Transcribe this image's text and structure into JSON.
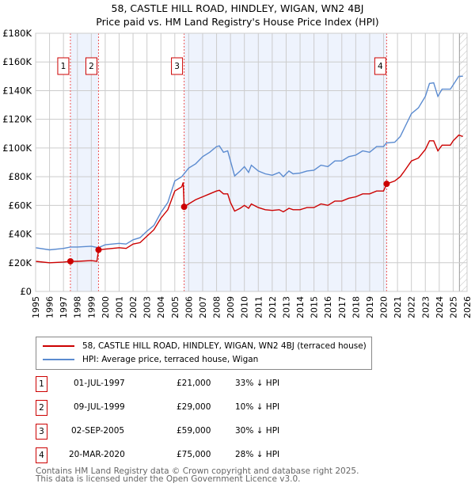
{
  "chart_data": {
    "type": "line",
    "title": "58, CASTLE HILL ROAD, HINDLEY, WIGAN, WN2 4BJ",
    "subtitle": "Price paid vs. HM Land Registry's House Price Index (HPI)",
    "xlim": [
      1995,
      2026
    ],
    "ylim": [
      0,
      180000
    ],
    "x_ticks": [
      "1995",
      "1996",
      "1997",
      "1998",
      "1999",
      "2000",
      "2001",
      "2002",
      "2003",
      "2004",
      "2005",
      "2006",
      "2007",
      "2008",
      "2009",
      "2010",
      "2011",
      "2012",
      "2013",
      "2014",
      "2015",
      "2016",
      "2017",
      "2018",
      "2019",
      "2020",
      "2021",
      "2022",
      "2023",
      "2024",
      "2025",
      "2026"
    ],
    "y_ticks": [
      {
        "v": 0,
        "label": "£0"
      },
      {
        "v": 20000,
        "label": "£20K"
      },
      {
        "v": 40000,
        "label": "£40K"
      },
      {
        "v": 60000,
        "label": "£60K"
      },
      {
        "v": 80000,
        "label": "£80K"
      },
      {
        "v": 100000,
        "label": "£100K"
      },
      {
        "v": 120000,
        "label": "£120K"
      },
      {
        "v": 140000,
        "label": "£140K"
      },
      {
        "v": 160000,
        "label": "£160K"
      },
      {
        "v": 180000,
        "label": "£180K"
      }
    ],
    "grid": true,
    "forecast_start": 2025.45,
    "series": [
      {
        "name": "58, CASTLE HILL ROAD, HINDLEY, WIGAN, WN2 4BJ (terraced house)",
        "color": "#cc0000",
        "x": [
          1995,
          1996,
          1997,
          1997.5,
          1998,
          1999,
          1999.4,
          1999.52,
          2000,
          2001,
          2001.5,
          2002,
          2002.5,
          2003,
          2003.5,
          2004,
          2004.5,
          2005,
          2005.5,
          2005.6,
          2005.67,
          2006,
          2006.5,
          2007,
          2007.5,
          2008,
          2008.2,
          2008.5,
          2008.8,
          2009,
          2009.3,
          2009.7,
          2010,
          2010.3,
          2010.5,
          2011,
          2011.5,
          2012,
          2012.5,
          2012.8,
          2013.2,
          2013.5,
          2014,
          2014.5,
          2015,
          2015.5,
          2016,
          2016.5,
          2017,
          2017.5,
          2018,
          2018.5,
          2019,
          2019.5,
          2020,
          2020.22,
          2020.8,
          2021.2,
          2021.5,
          2022,
          2022.5,
          2023,
          2023.3,
          2023.6,
          2023.9,
          2024.2,
          2024.8,
          2025,
          2025.4,
          2025.7
        ],
        "y": [
          21,
          20,
          20.5,
          21,
          21,
          21.5,
          21,
          29,
          29.5,
          30.5,
          30,
          33,
          34,
          38.5,
          43,
          51,
          57,
          70,
          73,
          76,
          59,
          61,
          64,
          66,
          68,
          70,
          70.5,
          68,
          68,
          62,
          56,
          58,
          60,
          58,
          61,
          58.5,
          57,
          56.5,
          57,
          55.5,
          58,
          57,
          57,
          58.5,
          58.5,
          61,
          60,
          63,
          63,
          65,
          66,
          68,
          68,
          70,
          70,
          75,
          77,
          80,
          84,
          91,
          93,
          99,
          105,
          105,
          98,
          102,
          102,
          105,
          109,
          108
        ]
      },
      {
        "name": "HPI: Average price, terraced house, Wigan",
        "color": "#5b8bd0",
        "x": [
          1995,
          1996,
          1997,
          1997.5,
          1998,
          1999,
          1999.5,
          2000,
          2001,
          2001.5,
          2002,
          2002.5,
          2003,
          2003.5,
          2004,
          2004.5,
          2005,
          2005.5,
          2006,
          2006.5,
          2007,
          2007.5,
          2008,
          2008.2,
          2008.5,
          2008.8,
          2009,
          2009.3,
          2009.7,
          2010,
          2010.3,
          2010.5,
          2011,
          2011.5,
          2012,
          2012.5,
          2012.8,
          2013.2,
          2013.5,
          2014,
          2014.5,
          2015,
          2015.5,
          2016,
          2016.5,
          2017,
          2017.5,
          2018,
          2018.5,
          2019,
          2019.5,
          2020,
          2020.2,
          2020.8,
          2021.2,
          2021.5,
          2022,
          2022.5,
          2023,
          2023.3,
          2023.6,
          2023.9,
          2024.2,
          2024.8,
          2025,
          2025.4,
          2025.7
        ],
        "y": [
          30.5,
          29,
          30,
          31,
          31,
          31.5,
          30.5,
          32.5,
          33.5,
          33,
          36,
          37.5,
          42,
          46,
          55,
          62,
          77,
          80,
          86,
          89,
          94,
          97,
          101,
          101.5,
          97,
          98,
          91,
          80.5,
          84,
          87,
          83,
          88,
          84,
          82,
          81,
          83,
          80,
          84,
          82,
          82.5,
          84,
          84.5,
          88,
          87,
          91,
          91,
          94,
          95,
          98,
          97,
          101,
          101,
          103.5,
          104,
          108,
          114,
          124,
          128,
          136,
          145,
          145.5,
          136,
          141,
          141,
          144,
          150,
          150
        ]
      }
    ],
    "y_unit": "thousands GBP",
    "sales": [
      {
        "n": "1",
        "x": 1997.5,
        "y": 21,
        "date": "01-JUL-1997",
        "price": "£21,000",
        "hpi": "33% ↓ HPI"
      },
      {
        "n": "2",
        "x": 1999.52,
        "y": 29,
        "date": "09-JUL-1999",
        "price": "£29,000",
        "hpi": "10% ↓ HPI"
      },
      {
        "n": "3",
        "x": 2005.67,
        "y": 59,
        "date": "02-SEP-2005",
        "price": "£59,000",
        "hpi": "30% ↓ HPI"
      },
      {
        "n": "4",
        "x": 2020.22,
        "y": 75,
        "date": "20-MAR-2020",
        "price": "£75,000",
        "hpi": "28% ↓ HPI"
      }
    ]
  },
  "footer": {
    "line1": "Contains HM Land Registry data © Crown copyright and database right 2025.",
    "line2": "This data is licensed under the Open Government Licence v3.0."
  }
}
